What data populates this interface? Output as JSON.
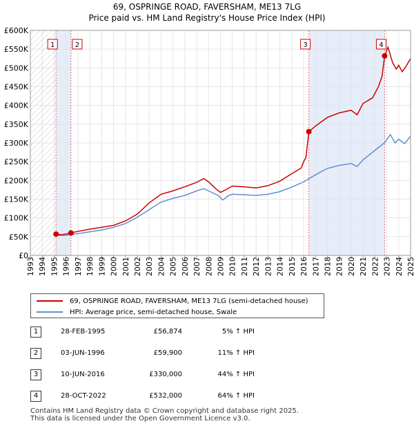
{
  "title_line1": "69, OSPRINGE ROAD, FAVERSHAM, ME13 7LG",
  "title_line2": "Price paid vs. HM Land Registry's House Price Index (HPI)",
  "chart_data": {
    "type": "line",
    "title": "Price paid vs. HM Land Registry's House Price Index (HPI)",
    "xlabel": "",
    "ylabel": "",
    "xlim": [
      1993,
      2025
    ],
    "ylim": [
      0,
      600000
    ],
    "x_ticks": [
      "1993",
      "1994",
      "1995",
      "1996",
      "1997",
      "1998",
      "1999",
      "2000",
      "2001",
      "2002",
      "2003",
      "2004",
      "2005",
      "2006",
      "2007",
      "2008",
      "2009",
      "2010",
      "2011",
      "2012",
      "2013",
      "2014",
      "2015",
      "2016",
      "2017",
      "2018",
      "2019",
      "2020",
      "2021",
      "2022",
      "2023",
      "2024",
      "2025"
    ],
    "y_ticks": [
      {
        "value": 0,
        "label": "£0"
      },
      {
        "value": 50000,
        "label": "£50K"
      },
      {
        "value": 100000,
        "label": "£100K"
      },
      {
        "value": 150000,
        "label": "£150K"
      },
      {
        "value": 200000,
        "label": "£200K"
      },
      {
        "value": 250000,
        "label": "£250K"
      },
      {
        "value": 300000,
        "label": "£300K"
      },
      {
        "value": 350000,
        "label": "£350K"
      },
      {
        "value": 400000,
        "label": "£400K"
      },
      {
        "value": 450000,
        "label": "£450K"
      },
      {
        "value": 500000,
        "label": "£500K"
      },
      {
        "value": 550000,
        "label": "£550K"
      },
      {
        "value": 600000,
        "label": "£600K"
      }
    ],
    "series": [
      {
        "name": "69, OSPRINGE ROAD, FAVERSHAM, ME13 7LG (semi-detached house)",
        "color": "#cc0000",
        "points": [
          [
            1995.16,
            56874
          ],
          [
            1995.6,
            55000
          ],
          [
            1996.0,
            57000
          ],
          [
            1996.42,
            59900
          ],
          [
            1997,
            64000
          ],
          [
            1998,
            70000
          ],
          [
            1999,
            75000
          ],
          [
            2000,
            80000
          ],
          [
            2001,
            92000
          ],
          [
            2002,
            110000
          ],
          [
            2003,
            140000
          ],
          [
            2004,
            163000
          ],
          [
            2005,
            172000
          ],
          [
            2006,
            183000
          ],
          [
            2007,
            195000
          ],
          [
            2007.6,
            205000
          ],
          [
            2008,
            196000
          ],
          [
            2008.6,
            178000
          ],
          [
            2009,
            168000
          ],
          [
            2009.5,
            176000
          ],
          [
            2010,
            185000
          ],
          [
            2011,
            183000
          ],
          [
            2012,
            180000
          ],
          [
            2013,
            186000
          ],
          [
            2014,
            198000
          ],
          [
            2015,
            218000
          ],
          [
            2015.8,
            233000
          ],
          [
            2016.0,
            250000
          ],
          [
            2016.2,
            262000
          ],
          [
            2016.44,
            330000
          ],
          [
            2017,
            345000
          ],
          [
            2018,
            368000
          ],
          [
            2019,
            380000
          ],
          [
            2020,
            387000
          ],
          [
            2020.5,
            375000
          ],
          [
            2021,
            405000
          ],
          [
            2021.8,
            420000
          ],
          [
            2022.3,
            450000
          ],
          [
            2022.6,
            478000
          ],
          [
            2022.82,
            532000
          ],
          [
            2023.1,
            555000
          ],
          [
            2023.5,
            513000
          ],
          [
            2023.8,
            497000
          ],
          [
            2024,
            507000
          ],
          [
            2024.3,
            490000
          ],
          [
            2024.6,
            503000
          ],
          [
            2025,
            525000
          ]
        ]
      },
      {
        "name": "HPI: Average price, semi-detached house, Swale",
        "color": "#5b8fcf",
        "points": [
          [
            1995,
            53000
          ],
          [
            1996,
            54000
          ],
          [
            1997,
            58000
          ],
          [
            1998,
            63000
          ],
          [
            1999,
            68000
          ],
          [
            2000,
            75000
          ],
          [
            2001,
            85000
          ],
          [
            2002,
            102000
          ],
          [
            2003,
            122000
          ],
          [
            2004,
            142000
          ],
          [
            2005,
            152000
          ],
          [
            2006,
            160000
          ],
          [
            2007,
            172000
          ],
          [
            2007.6,
            178000
          ],
          [
            2008,
            172000
          ],
          [
            2008.8,
            160000
          ],
          [
            2009.2,
            148000
          ],
          [
            2009.7,
            160000
          ],
          [
            2010,
            163000
          ],
          [
            2011,
            162000
          ],
          [
            2012,
            160000
          ],
          [
            2013,
            163000
          ],
          [
            2014,
            170000
          ],
          [
            2015,
            182000
          ],
          [
            2016,
            196000
          ],
          [
            2017,
            215000
          ],
          [
            2018,
            232000
          ],
          [
            2019,
            240000
          ],
          [
            2020,
            245000
          ],
          [
            2020.5,
            237000
          ],
          [
            2021,
            255000
          ],
          [
            2022,
            280000
          ],
          [
            2022.8,
            300000
          ],
          [
            2023.3,
            322000
          ],
          [
            2023.7,
            300000
          ],
          [
            2024,
            310000
          ],
          [
            2024.5,
            298000
          ],
          [
            2025,
            318000
          ]
        ]
      }
    ],
    "sales": [
      {
        "num": "1",
        "year": 1995.16,
        "price": 56874
      },
      {
        "num": "2",
        "year": 1996.42,
        "price": 59900
      },
      {
        "num": "3",
        "year": 2016.44,
        "price": 330000
      },
      {
        "num": "4",
        "year": 2022.82,
        "price": 532000
      }
    ],
    "shaded_ranges": [
      [
        1995.16,
        1996.42
      ],
      [
        2016.44,
        2022.82
      ]
    ],
    "hatched_range": [
      1993,
      1995.16
    ],
    "legend_position": "below"
  },
  "legend": {
    "red_label": "69, OSPRINGE ROAD, FAVERSHAM, ME13 7LG (semi-detached house)",
    "blue_label": "HPI: Average price, semi-detached house, Swale",
    "red_color": "#cc0000",
    "blue_color": "#5b8fcf"
  },
  "transactions": [
    {
      "num": "1",
      "date": "28-FEB-1995",
      "price": "£56,874",
      "hpi": "5% ↑ HPI"
    },
    {
      "num": "2",
      "date": "03-JUN-1996",
      "price": "£59,900",
      "hpi": "11% ↑ HPI"
    },
    {
      "num": "3",
      "date": "10-JUN-2016",
      "price": "£330,000",
      "hpi": "44% ↑ HPI"
    },
    {
      "num": "4",
      "date": "28-OCT-2022",
      "price": "£532,000",
      "hpi": "64% ↑ HPI"
    }
  ],
  "footer_line1": "Contains HM Land Registry data © Crown copyright and database right 2025.",
  "footer_line2": "This data is licensed under the Open Government Licence v3.0."
}
